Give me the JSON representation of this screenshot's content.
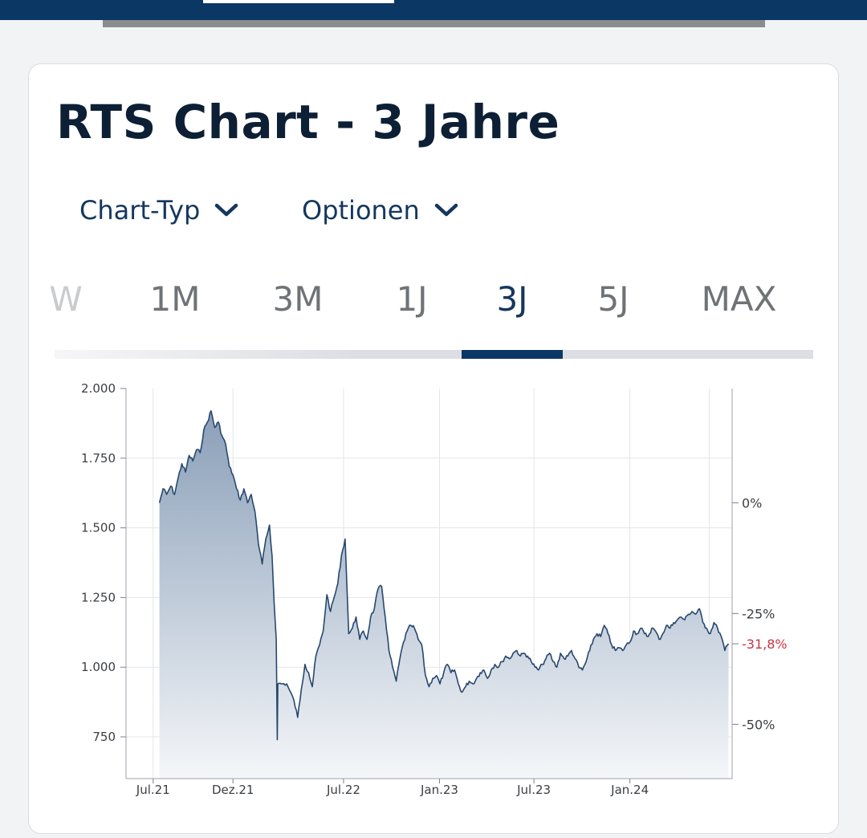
{
  "page": {
    "title": "RTS Chart - 3 Jahre",
    "dropdowns": [
      {
        "label": "Chart-Typ",
        "icon": "chevron-down-icon"
      },
      {
        "label": "Optionen",
        "icon": "chevron-down-icon"
      }
    ],
    "tabs": [
      {
        "label": "W",
        "active": false
      },
      {
        "label": "1M",
        "active": false
      },
      {
        "label": "3M",
        "active": false
      },
      {
        "label": "1J",
        "active": false
      },
      {
        "label": "3J",
        "active": true
      },
      {
        "label": "5J",
        "active": false
      },
      {
        "label": "MAX",
        "active": false
      }
    ]
  },
  "colors": {
    "brand": "#0b3765",
    "line": "#27486e",
    "area_top": "#8a9fb8",
    "area_bottom": "#f4f6f9",
    "negative": "#cc3344"
  },
  "chart_data": {
    "type": "area",
    "title": "",
    "ylim": [
      600,
      2000
    ],
    "y_ticks": [
      {
        "value": 2000,
        "label": "2.000"
      },
      {
        "value": 1750,
        "label": "1.750"
      },
      {
        "value": 1500,
        "label": "1.500"
      },
      {
        "value": 1250,
        "label": "1.250"
      },
      {
        "value": 1000,
        "label": "1.000"
      },
      {
        "value": 750,
        "label": "750"
      }
    ],
    "x_range": [
      "2021-05-10",
      "2024-07-15"
    ],
    "x_ticks": [
      {
        "date": "2021-07-01",
        "label": "Jul.21"
      },
      {
        "date": "2021-12-01",
        "label": "Dez.21"
      },
      {
        "date": "2022-07-01",
        "label": "Jul.22"
      },
      {
        "date": "2023-01-01",
        "label": "Jan.23"
      },
      {
        "date": "2023-07-01",
        "label": "Jul.23"
      },
      {
        "date": "2024-01-01",
        "label": "Jan.24"
      }
    ],
    "x_grid_dates": [
      "2021-07-01",
      "2021-12-01",
      "2022-07-01",
      "2023-01-01",
      "2023-07-01",
      "2024-01-01",
      "2024-06-01"
    ],
    "secondary_axis": {
      "base_value": 1590,
      "ticks": [
        {
          "label": "0%",
          "value": 1590,
          "highlight": false
        },
        {
          "label": "-25%",
          "value": 1192.5,
          "highlight": false
        },
        {
          "label": "-31,8%",
          "value": 1084,
          "highlight": true
        },
        {
          "label": "-50%",
          "value": 795,
          "highlight": false
        }
      ]
    },
    "grid": true,
    "series": [
      {
        "values": [
          [
            "2021-07-13",
            1590
          ],
          [
            "2021-07-20",
            1640
          ],
          [
            "2021-07-27",
            1620
          ],
          [
            "2021-08-04",
            1650
          ],
          [
            "2021-08-11",
            1620
          ],
          [
            "2021-08-18",
            1680
          ],
          [
            "2021-08-25",
            1730
          ],
          [
            "2021-09-01",
            1700
          ],
          [
            "2021-09-08",
            1760
          ],
          [
            "2021-09-15",
            1740
          ],
          [
            "2021-09-22",
            1780
          ],
          [
            "2021-09-29",
            1770
          ],
          [
            "2021-10-06",
            1850
          ],
          [
            "2021-10-13",
            1880
          ],
          [
            "2021-10-20",
            1920
          ],
          [
            "2021-10-27",
            1860
          ],
          [
            "2021-11-03",
            1880
          ],
          [
            "2021-11-10",
            1830
          ],
          [
            "2021-11-17",
            1800
          ],
          [
            "2021-11-24",
            1720
          ],
          [
            "2021-12-01",
            1690
          ],
          [
            "2021-12-08",
            1640
          ],
          [
            "2021-12-15",
            1600
          ],
          [
            "2021-12-22",
            1640
          ],
          [
            "2021-12-29",
            1590
          ],
          [
            "2022-01-05",
            1620
          ],
          [
            "2022-01-12",
            1560
          ],
          [
            "2022-01-19",
            1440
          ],
          [
            "2022-01-26",
            1370
          ],
          [
            "2022-02-02",
            1460
          ],
          [
            "2022-02-09",
            1510
          ],
          [
            "2022-02-14",
            1400
          ],
          [
            "2022-02-18",
            1230
          ],
          [
            "2022-02-22",
            1100
          ],
          [
            "2022-02-24",
            740
          ],
          [
            "2022-02-25",
            940
          ],
          [
            "2022-03-14",
            940
          ],
          [
            "2022-03-28",
            880
          ],
          [
            "2022-04-04",
            820
          ],
          [
            "2022-04-11",
            920
          ],
          [
            "2022-04-18",
            1010
          ],
          [
            "2022-04-25",
            980
          ],
          [
            "2022-05-02",
            930
          ],
          [
            "2022-05-09",
            1040
          ],
          [
            "2022-05-16",
            1080
          ],
          [
            "2022-05-23",
            1130
          ],
          [
            "2022-05-30",
            1260
          ],
          [
            "2022-06-06",
            1200
          ],
          [
            "2022-06-13",
            1250
          ],
          [
            "2022-06-20",
            1300
          ],
          [
            "2022-06-27",
            1400
          ],
          [
            "2022-07-04",
            1460
          ],
          [
            "2022-07-11",
            1120
          ],
          [
            "2022-07-18",
            1140
          ],
          [
            "2022-07-25",
            1180
          ],
          [
            "2022-08-01",
            1100
          ],
          [
            "2022-08-08",
            1130
          ],
          [
            "2022-08-15",
            1100
          ],
          [
            "2022-08-22",
            1180
          ],
          [
            "2022-08-29",
            1210
          ],
          [
            "2022-09-05",
            1280
          ],
          [
            "2022-09-12",
            1290
          ],
          [
            "2022-09-19",
            1180
          ],
          [
            "2022-09-26",
            1060
          ],
          [
            "2022-10-03",
            1000
          ],
          [
            "2022-10-10",
            950
          ],
          [
            "2022-10-17",
            1030
          ],
          [
            "2022-10-24",
            1090
          ],
          [
            "2022-10-31",
            1130
          ],
          [
            "2022-11-07",
            1150
          ],
          [
            "2022-11-14",
            1140
          ],
          [
            "2022-11-21",
            1100
          ],
          [
            "2022-11-28",
            1080
          ],
          [
            "2022-12-05",
            970
          ],
          [
            "2022-12-12",
            930
          ],
          [
            "2022-12-19",
            960
          ],
          [
            "2022-12-26",
            970
          ],
          [
            "2023-01-02",
            940
          ],
          [
            "2023-01-09",
            980
          ],
          [
            "2023-01-16",
            1010
          ],
          [
            "2023-01-23",
            980
          ],
          [
            "2023-01-30",
            990
          ],
          [
            "2023-02-06",
            940
          ],
          [
            "2023-02-13",
            910
          ],
          [
            "2023-02-20",
            930
          ],
          [
            "2023-02-27",
            950
          ],
          [
            "2023-03-06",
            940
          ],
          [
            "2023-03-13",
            960
          ],
          [
            "2023-03-20",
            980
          ],
          [
            "2023-03-27",
            990
          ],
          [
            "2023-04-03",
            960
          ],
          [
            "2023-04-10",
            990
          ],
          [
            "2023-04-17",
            1010
          ],
          [
            "2023-04-24",
            1000
          ],
          [
            "2023-05-01",
            1020
          ],
          [
            "2023-05-08",
            1040
          ],
          [
            "2023-05-15",
            1030
          ],
          [
            "2023-05-22",
            1050
          ],
          [
            "2023-05-29",
            1060
          ],
          [
            "2023-06-05",
            1040
          ],
          [
            "2023-06-12",
            1050
          ],
          [
            "2023-06-19",
            1040
          ],
          [
            "2023-06-26",
            1020
          ],
          [
            "2023-07-03",
            1000
          ],
          [
            "2023-07-10",
            990
          ],
          [
            "2023-07-17",
            1010
          ],
          [
            "2023-07-24",
            1030
          ],
          [
            "2023-07-31",
            1050
          ],
          [
            "2023-08-07",
            1020
          ],
          [
            "2023-08-14",
            1000
          ],
          [
            "2023-08-21",
            1050
          ],
          [
            "2023-08-28",
            1030
          ],
          [
            "2023-09-04",
            1040
          ],
          [
            "2023-09-11",
            1060
          ],
          [
            "2023-09-18",
            1030
          ],
          [
            "2023-09-25",
            1000
          ],
          [
            "2023-10-02",
            990
          ],
          [
            "2023-10-09",
            1020
          ],
          [
            "2023-10-16",
            1060
          ],
          [
            "2023-10-23",
            1100
          ],
          [
            "2023-10-30",
            1120
          ],
          [
            "2023-11-06",
            1110
          ],
          [
            "2023-11-13",
            1150
          ],
          [
            "2023-11-20",
            1120
          ],
          [
            "2023-11-27",
            1080
          ],
          [
            "2023-12-04",
            1060
          ],
          [
            "2023-12-11",
            1070
          ],
          [
            "2023-12-18",
            1060
          ],
          [
            "2023-12-25",
            1080
          ],
          [
            "2024-01-01",
            1090
          ],
          [
            "2024-01-08",
            1130
          ],
          [
            "2024-01-15",
            1120
          ],
          [
            "2024-01-22",
            1140
          ],
          [
            "2024-01-29",
            1120
          ],
          [
            "2024-02-05",
            1110
          ],
          [
            "2024-02-12",
            1140
          ],
          [
            "2024-02-19",
            1130
          ],
          [
            "2024-02-26",
            1100
          ],
          [
            "2024-03-04",
            1120
          ],
          [
            "2024-03-11",
            1150
          ],
          [
            "2024-03-18",
            1140
          ],
          [
            "2024-03-25",
            1160
          ],
          [
            "2024-04-01",
            1170
          ],
          [
            "2024-04-08",
            1180
          ],
          [
            "2024-04-15",
            1170
          ],
          [
            "2024-04-22",
            1190
          ],
          [
            "2024-04-29",
            1200
          ],
          [
            "2024-05-06",
            1190
          ],
          [
            "2024-05-13",
            1210
          ],
          [
            "2024-05-20",
            1160
          ],
          [
            "2024-05-27",
            1140
          ],
          [
            "2024-06-03",
            1120
          ],
          [
            "2024-06-10",
            1160
          ],
          [
            "2024-06-17",
            1140
          ],
          [
            "2024-06-24",
            1110
          ],
          [
            "2024-07-01",
            1060
          ],
          [
            "2024-07-08",
            1084
          ]
        ]
      }
    ]
  }
}
